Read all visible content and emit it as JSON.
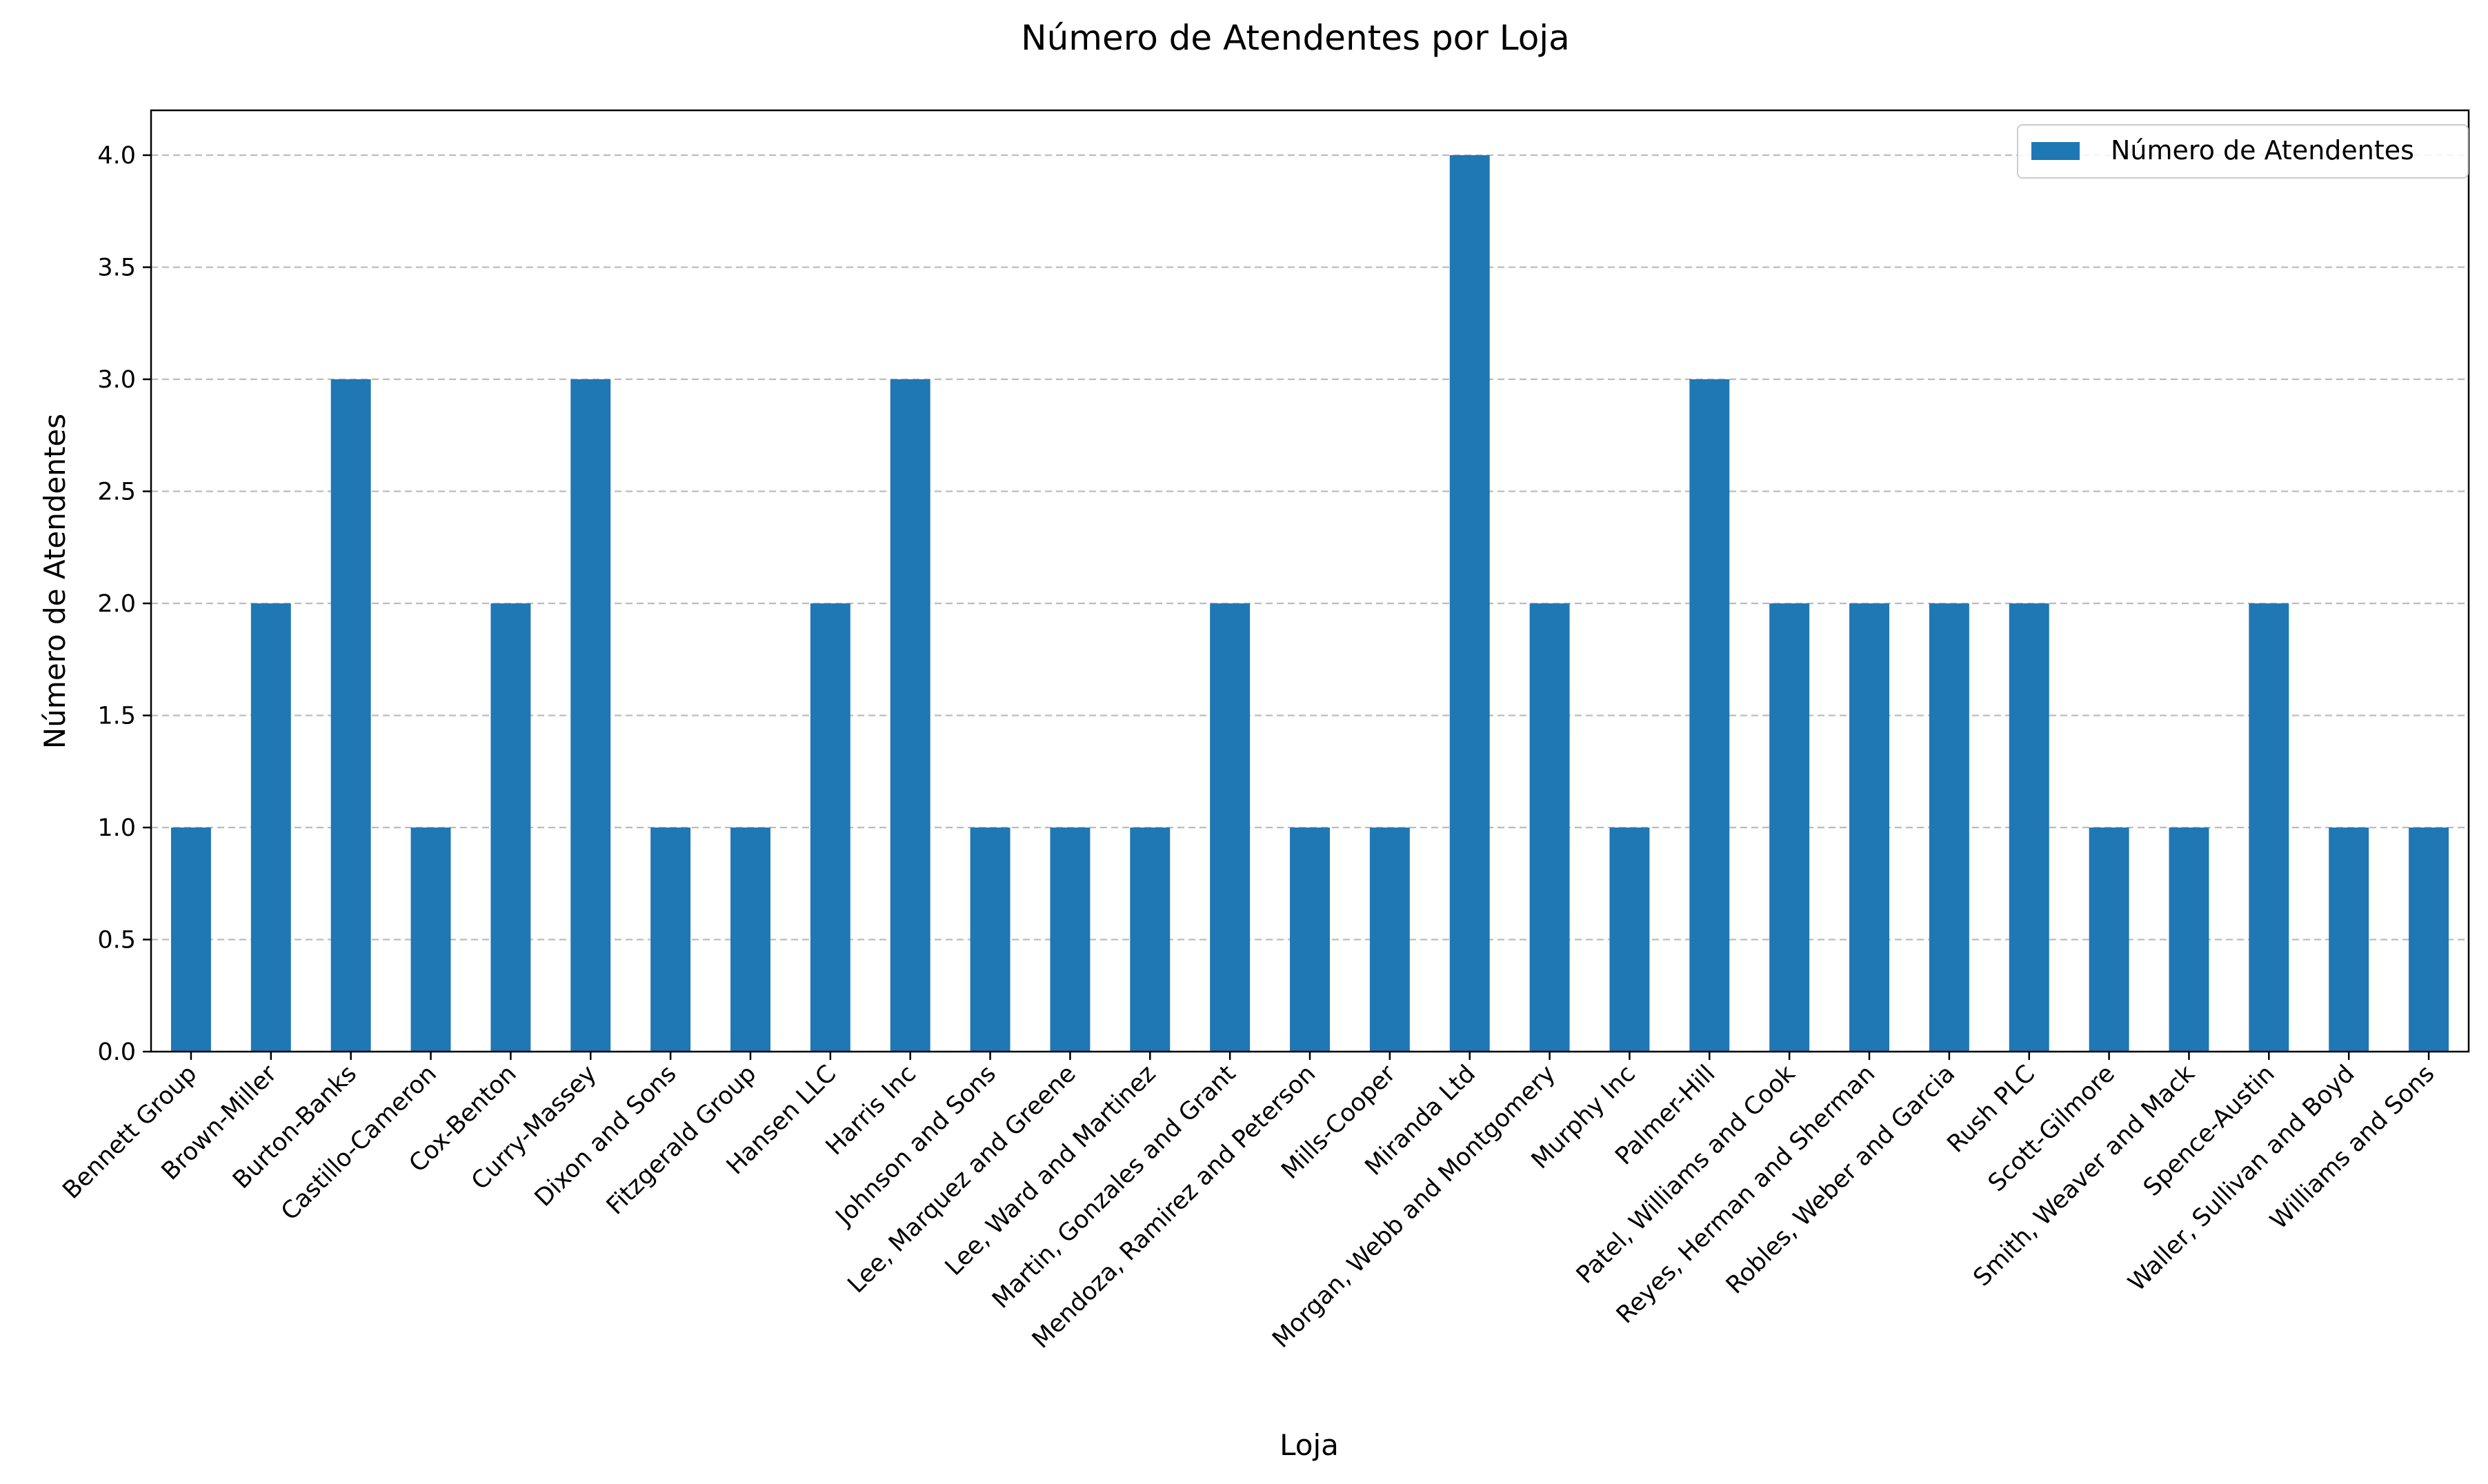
{
  "chart_data": {
    "type": "bar",
    "title": "Número de Atendentes por Loja",
    "xlabel": "Loja",
    "ylabel": "Número de Atendentes",
    "ylim": [
      0,
      4.2
    ],
    "yticks": [
      0.0,
      0.5,
      1.0,
      1.5,
      2.0,
      2.5,
      3.0,
      3.5,
      4.0
    ],
    "ytick_labels": [
      "0.0",
      "0.5",
      "1.0",
      "1.5",
      "2.0",
      "2.5",
      "3.0",
      "3.5",
      "4.0"
    ],
    "grid": "horizontal-dashed",
    "legend_position": "top-right",
    "bar_color": "#1f77b4",
    "categories": [
      "Bennett Group",
      "Brown-Miller",
      "Burton-Banks",
      "Castillo-Cameron",
      "Cox-Benton",
      "Curry-Massey",
      "Dixon and Sons",
      "Fitzgerald Group",
      "Hansen LLC",
      "Harris Inc",
      "Johnson and Sons",
      "Lee, Marquez and Greene",
      "Lee, Ward and Martinez",
      "Martin, Gonzales and Grant",
      "Mendoza, Ramirez and Peterson",
      "Mills-Cooper",
      "Miranda Ltd",
      "Morgan, Webb and Montgomery",
      "Murphy Inc",
      "Palmer-Hill",
      "Patel, Williams and Cook",
      "Reyes, Herman and Sherman",
      "Robles, Weber and Garcia",
      "Rush PLC",
      "Scott-Gilmore",
      "Smith, Weaver and Mack",
      "Spence-Austin",
      "Waller, Sullivan and Boyd",
      "Williams and Sons"
    ],
    "series": [
      {
        "name": "Número de Atendentes",
        "values": [
          1,
          2,
          3,
          1,
          2,
          3,
          1,
          1,
          2,
          3,
          1,
          1,
          1,
          2,
          1,
          1,
          4,
          2,
          1,
          3,
          2,
          2,
          2,
          2,
          1,
          1,
          2,
          1,
          1
        ]
      }
    ]
  }
}
